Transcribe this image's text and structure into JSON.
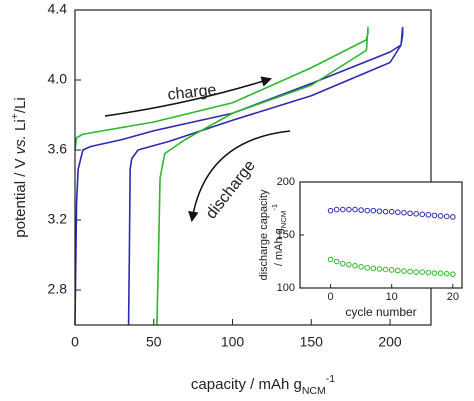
{
  "chart_data": [
    {
      "type": "line",
      "xlabel": [
        "capacity / mAh g",
        {
          "text": "NCM",
          "style": "sub"
        },
        {
          "text": "-1",
          "style": "sup"
        }
      ],
      "ylabel": [
        "potential / V ",
        {
          "text": "vs.",
          "style": "italic"
        },
        " Li",
        {
          "text": "+",
          "style": "sup"
        },
        "/Li"
      ],
      "xlim": [
        0,
        226
      ],
      "ylim": [
        2.6,
        4.4
      ],
      "xticks": [
        0,
        50,
        100,
        150,
        200
      ],
      "yticks": [
        2.8,
        3.2,
        3.6,
        {
          "value": 4.0,
          "label": "4.0"
        },
        4.4
      ],
      "annotations": [
        "charge",
        "discharge"
      ],
      "series": [
        {
          "color": "#2b2bb0",
          "x": [
            0,
            1,
            2,
            5,
            10,
            30,
            50,
            100,
            150,
            200,
            207,
            208,
            208,
            207,
            200,
            150,
            100,
            60,
            40,
            36,
            35,
            34.5,
            34
          ],
          "values": [
            2.6,
            3.3,
            3.49,
            3.6,
            3.62,
            3.66,
            3.71,
            3.81,
            3.98,
            4.16,
            4.2,
            4.26,
            4.3,
            4.2,
            4.1,
            3.91,
            3.77,
            3.65,
            3.6,
            3.55,
            3.49,
            3.0,
            2.6
          ]
        },
        {
          "color": "#2db82d",
          "x": [
            0,
            1,
            5,
            50,
            100,
            150,
            185,
            186,
            186,
            185,
            150,
            100,
            70,
            57,
            54,
            53,
            52
          ],
          "values": [
            3.6,
            3.67,
            3.69,
            3.76,
            3.87,
            4.07,
            4.23,
            4.27,
            4.3,
            4.17,
            3.97,
            3.81,
            3.66,
            3.58,
            3.44,
            3.0,
            2.6
          ]
        }
      ]
    },
    {
      "type": "scatter",
      "xlabel": [
        "cycle number"
      ],
      "ylabel": [
        [
          "discharge capacity"
        ],
        [
          "/ mAh g",
          {
            "text": "NCM",
            "style": "sub"
          },
          {
            "text": "-1",
            "style": "sup"
          }
        ]
      ],
      "xlim": [
        -5,
        21.5
      ],
      "ylim": [
        100,
        200
      ],
      "xticks": [
        0,
        10,
        20
      ],
      "yticks": [
        100,
        150,
        200
      ],
      "series": [
        {
          "color": "#2b2bb0",
          "x": [
            0,
            1,
            2,
            3,
            4,
            5,
            6,
            7,
            8,
            9,
            10,
            11,
            12,
            13,
            14,
            15,
            16,
            17,
            18,
            19,
            20
          ],
          "values": [
            173,
            174,
            174,
            174,
            174,
            173.5,
            173,
            173,
            172.5,
            172,
            172,
            171.5,
            171,
            170.5,
            170,
            169.5,
            169,
            168.5,
            168,
            167.5,
            167
          ]
        },
        {
          "color": "#2db82d",
          "x": [
            0,
            1,
            2,
            3,
            4,
            5,
            6,
            7,
            8,
            9,
            10,
            11,
            12,
            13,
            14,
            15,
            16,
            17,
            18,
            19,
            20
          ],
          "values": [
            127,
            125,
            123,
            122,
            121,
            120,
            119,
            118.5,
            118,
            117.5,
            117,
            116.5,
            116,
            115.5,
            115,
            115,
            114.5,
            114,
            114,
            113.5,
            113
          ]
        }
      ]
    }
  ]
}
